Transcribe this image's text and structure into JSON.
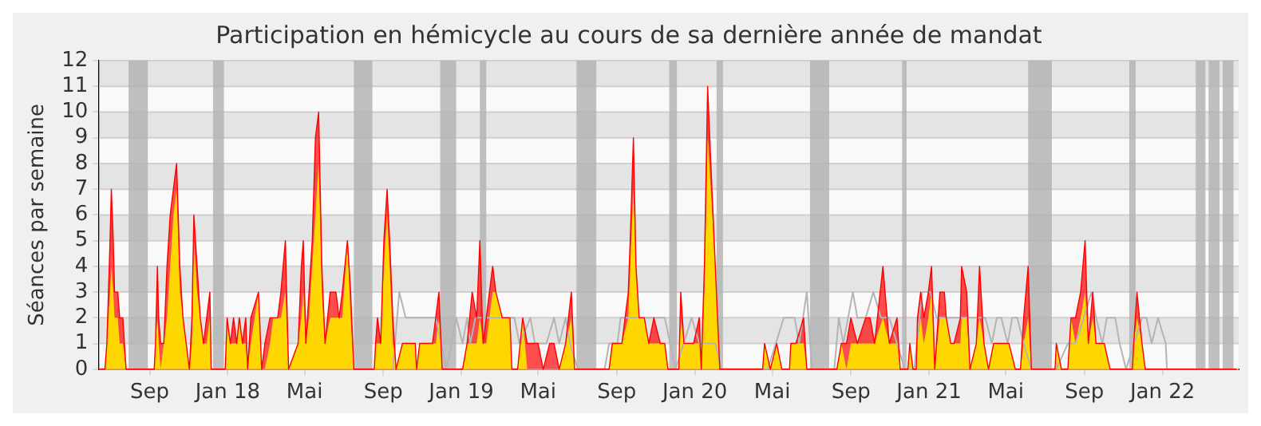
{
  "chart_data": {
    "type": "area",
    "title": "Participation en hémicycle au cours de sa dernière année de mandat",
    "ylabel": "Séances par semaine",
    "xlim": [
      "2017-06-14",
      "2022-04-30"
    ],
    "xticks": [
      {
        "value": "2017-09-01",
        "label": "Sep"
      },
      {
        "value": "2018-01-01",
        "label": "Jan 18"
      },
      {
        "value": "2018-05-01",
        "label": "Mai"
      },
      {
        "value": "2018-09-01",
        "label": "Sep"
      },
      {
        "value": "2019-01-01",
        "label": "Jan 19"
      },
      {
        "value": "2019-05-01",
        "label": "Mai"
      },
      {
        "value": "2019-09-01",
        "label": "Sep"
      },
      {
        "value": "2020-01-01",
        "label": "Jan 20"
      },
      {
        "value": "2020-05-01",
        "label": "Mai"
      },
      {
        "value": "2020-09-01",
        "label": "Sep"
      },
      {
        "value": "2021-01-01",
        "label": "Jan 21"
      },
      {
        "value": "2021-05-01",
        "label": "Mai"
      },
      {
        "value": "2021-09-01",
        "label": "Sep"
      },
      {
        "value": "2022-01-01",
        "label": "Jan 22"
      }
    ],
    "ylim": [
      0,
      12
    ],
    "yticks": [
      0,
      1,
      2,
      3,
      4,
      5,
      6,
      7,
      8,
      9,
      10,
      11,
      12
    ],
    "grid": "y",
    "legend": false,
    "marker": "none",
    "bands": [
      {
        "axis": "x",
        "from": "2017-07-30",
        "to": "2017-08-29",
        "color": "#b0b0b0"
      },
      {
        "axis": "x",
        "from": "2017-12-09",
        "to": "2017-12-26",
        "color": "#b0b0b0"
      },
      {
        "axis": "x",
        "from": "2018-07-17",
        "to": "2018-08-15",
        "color": "#b0b0b0"
      },
      {
        "axis": "x",
        "from": "2018-11-29",
        "to": "2018-12-24",
        "color": "#b0b0b0"
      },
      {
        "axis": "x",
        "from": "2019-01-30",
        "to": "2019-02-09",
        "color": "#b0b0b0"
      },
      {
        "axis": "x",
        "from": "2019-06-30",
        "to": "2019-07-31",
        "color": "#b0b0b0"
      },
      {
        "axis": "x",
        "from": "2019-11-22",
        "to": "2019-12-04",
        "color": "#b0b0b0"
      },
      {
        "axis": "x",
        "from": "2020-02-04",
        "to": "2020-02-14",
        "color": "#b0b0b0"
      },
      {
        "axis": "x",
        "from": "2020-06-29",
        "to": "2020-07-29",
        "color": "#b0b0b0"
      },
      {
        "axis": "x",
        "from": "2020-11-20",
        "to": "2020-11-27",
        "color": "#b0b0b0"
      },
      {
        "axis": "x",
        "from": "2021-06-05",
        "to": "2021-07-12",
        "color": "#b0b0b0"
      },
      {
        "axis": "x",
        "from": "2021-11-10",
        "to": "2021-11-20",
        "color": "#b0b0b0"
      },
      {
        "axis": "x",
        "from": "2022-02-22",
        "to": "2022-03-09",
        "color": "#b0b0b0"
      },
      {
        "axis": "x",
        "from": "2022-03-14",
        "to": "2022-03-31",
        "color": "#b0b0b0"
      },
      {
        "axis": "x",
        "from": "2022-04-05",
        "to": "2022-04-22",
        "color": "#b0b0b0"
      }
    ],
    "x": [
      "2017-06-14",
      "2017-06-23",
      "2017-06-26",
      "2017-07-01",
      "2017-07-03",
      "2017-07-06",
      "2017-07-08",
      "2017-07-13",
      "2017-07-16",
      "2017-07-21",
      "2017-07-26",
      "2017-09-08",
      "2017-09-10",
      "2017-09-13",
      "2017-09-15",
      "2017-09-18",
      "2017-09-23",
      "2017-09-28",
      "2017-10-03",
      "2017-10-08",
      "2017-10-13",
      "2017-10-18",
      "2017-10-23",
      "2017-10-28",
      "2017-11-02",
      "2017-11-06",
      "2017-11-09",
      "2017-11-14",
      "2017-11-19",
      "2017-11-24",
      "2017-11-29",
      "2017-12-04",
      "2017-12-06",
      "2017-12-28",
      "2017-12-31",
      "2018-01-05",
      "2018-01-10",
      "2018-01-15",
      "2018-01-19",
      "2018-01-24",
      "2018-01-29",
      "2018-02-01",
      "2018-02-06",
      "2018-02-18",
      "2018-02-23",
      "2018-02-28",
      "2018-03-08",
      "2018-03-13",
      "2018-03-20",
      "2018-03-25",
      "2018-04-01",
      "2018-04-06",
      "2018-04-21",
      "2018-04-26",
      "2018-04-29",
      "2018-05-03",
      "2018-05-08",
      "2018-05-13",
      "2018-05-18",
      "2018-05-23",
      "2018-05-28",
      "2018-06-02",
      "2018-06-10",
      "2018-06-19",
      "2018-06-24",
      "2018-06-29",
      "2018-07-07",
      "2018-07-12",
      "2018-07-17",
      "2018-08-18",
      "2018-08-20",
      "2018-08-23",
      "2018-08-28",
      "2018-09-02",
      "2018-09-07",
      "2018-09-11",
      "2018-09-16",
      "2018-09-21",
      "2018-10-01",
      "2018-10-21",
      "2018-10-23",
      "2018-10-28",
      "2018-11-17",
      "2018-11-22",
      "2018-11-27",
      "2018-12-02",
      "2019-01-03",
      "2019-01-10",
      "2019-01-18",
      "2019-01-25",
      "2019-01-30",
      "2019-02-04",
      "2019-02-09",
      "2019-02-14",
      "2019-02-19",
      "2019-02-24",
      "2019-03-06",
      "2019-03-18",
      "2019-03-21",
      "2019-03-30",
      "2019-04-07",
      "2019-04-14",
      "2019-04-24",
      "2019-05-01",
      "2019-05-09",
      "2019-05-19",
      "2019-05-26",
      "2019-06-03",
      "2019-06-13",
      "2019-06-22",
      "2019-06-27",
      "2019-08-20",
      "2019-08-25",
      "2019-09-09",
      "2019-09-19",
      "2019-09-22",
      "2019-09-27",
      "2019-10-01",
      "2019-10-06",
      "2019-10-14",
      "2019-10-21",
      "2019-10-29",
      "2019-11-08",
      "2019-11-15",
      "2019-11-20",
      "2019-12-07",
      "2019-12-10",
      "2019-12-15",
      "2019-12-20",
      "2019-12-30",
      "2020-01-08",
      "2020-01-11",
      "2020-01-16",
      "2020-01-21",
      "2020-01-26",
      "2020-02-02",
      "2020-02-09",
      "2020-04-16",
      "2020-04-19",
      "2020-04-28",
      "2020-05-08",
      "2020-05-16",
      "2020-05-28",
      "2020-05-30",
      "2020-06-07",
      "2020-06-19",
      "2020-06-24",
      "2020-08-10",
      "2020-08-17",
      "2020-08-25",
      "2020-09-01",
      "2020-09-11",
      "2020-09-24",
      "2020-10-01",
      "2020-10-08",
      "2020-10-21",
      "2020-10-31",
      "2020-11-12",
      "2020-11-17",
      "2020-11-29",
      "2020-12-02",
      "2020-12-07",
      "2020-12-12",
      "2020-12-14",
      "2020-12-19",
      "2020-12-24",
      "2020-12-31",
      "2021-01-05",
      "2021-01-10",
      "2021-01-18",
      "2021-01-25",
      "2021-01-28",
      "2021-02-04",
      "2021-02-09",
      "2021-02-19",
      "2021-02-21",
      "2021-03-01",
      "2021-03-06",
      "2021-03-16",
      "2021-03-21",
      "2021-03-28",
      "2021-04-04",
      "2021-04-12",
      "2021-05-06",
      "2021-05-16",
      "2021-05-24",
      "2021-05-29",
      "2021-06-05",
      "2021-06-10",
      "2021-07-17",
      "2021-07-19",
      "2021-07-27",
      "2021-08-06",
      "2021-08-11",
      "2021-08-18",
      "2021-08-26",
      "2021-09-02",
      "2021-09-07",
      "2021-09-14",
      "2021-09-19",
      "2021-10-02",
      "2021-10-11",
      "2021-11-15",
      "2021-11-17",
      "2021-11-22",
      "2021-11-30",
      "2021-12-05",
      "2022-04-27"
    ],
    "series": [
      {
        "color": "#ff0000",
        "values": [
          0,
          0,
          1,
          5,
          7,
          5,
          3,
          3,
          2,
          2,
          0,
          0,
          1,
          4,
          2,
          1,
          1,
          4,
          6,
          7,
          8,
          4,
          2,
          1,
          0,
          2,
          6,
          4,
          2,
          1,
          2,
          3,
          0,
          0,
          2,
          1,
          2,
          1,
          2,
          1,
          2,
          0,
          2,
          3,
          0,
          1,
          2,
          2,
          2,
          3,
          5,
          0,
          1,
          4,
          5,
          1,
          3,
          5,
          9,
          10,
          4,
          1,
          3,
          3,
          2,
          3,
          5,
          3,
          0,
          0,
          1,
          2,
          1,
          5,
          7,
          5,
          2,
          0,
          1,
          1,
          0,
          1,
          1,
          2,
          3,
          0,
          0,
          1,
          3,
          2,
          5,
          1,
          2,
          3,
          4,
          3,
          2,
          2,
          0,
          0,
          2,
          1,
          1,
          1,
          0,
          1,
          1,
          0,
          1,
          3,
          0,
          0,
          1,
          1,
          3,
          5,
          9,
          4,
          2,
          2,
          1,
          2,
          1,
          1,
          0,
          0,
          3,
          1,
          1,
          1,
          2,
          0,
          4,
          11,
          8,
          4,
          0,
          0,
          1,
          0,
          1,
          0,
          0,
          1,
          1,
          2,
          0,
          0,
          1,
          1,
          2,
          1,
          2,
          2,
          1,
          4,
          1,
          2,
          0,
          0,
          1,
          0,
          0,
          2,
          3,
          2,
          3,
          4,
          0,
          3,
          3,
          2,
          1,
          1,
          2,
          4,
          3,
          0,
          1,
          4,
          1,
          0,
          1,
          1,
          0,
          0,
          2,
          4,
          0,
          0,
          1,
          0,
          0,
          2,
          2,
          3,
          5,
          1,
          3,
          1,
          1,
          0,
          0,
          1,
          3,
          1,
          0,
          0
        ]
      },
      {
        "color": "#ffd700",
        "values": [
          0,
          0,
          1,
          3,
          4,
          3,
          2,
          2,
          1,
          1,
          0,
          0,
          1,
          2,
          1,
          0,
          1,
          2,
          4,
          6,
          7,
          3,
          2,
          1,
          0,
          1,
          5,
          3,
          2,
          1,
          1,
          2,
          0,
          0,
          2,
          1,
          1,
          1,
          2,
          1,
          1,
          0,
          1,
          3,
          0,
          0,
          1,
          2,
          2,
          2,
          3,
          0,
          1,
          2,
          3,
          1,
          2,
          4,
          6,
          8,
          3,
          1,
          2,
          2,
          2,
          2,
          5,
          2,
          0,
          0,
          1,
          1,
          1,
          4,
          6,
          4,
          1,
          0,
          1,
          1,
          0,
          1,
          1,
          1,
          2,
          0,
          0,
          1,
          1,
          1,
          2,
          1,
          1,
          2,
          3,
          3,
          2,
          2,
          0,
          0,
          2,
          0,
          0,
          0,
          0,
          0,
          0,
          0,
          1,
          2,
          0,
          0,
          1,
          1,
          2,
          4,
          7,
          4,
          2,
          2,
          1,
          1,
          1,
          1,
          0,
          0,
          2,
          1,
          1,
          1,
          1,
          0,
          3,
          9,
          7,
          4,
          0,
          0,
          1,
          0,
          1,
          0,
          0,
          1,
          1,
          1,
          0,
          0,
          1,
          0,
          1,
          1,
          1,
          1,
          1,
          2,
          1,
          1,
          0,
          0,
          1,
          0,
          0,
          1,
          2,
          1,
          2,
          3,
          0,
          2,
          2,
          2,
          1,
          1,
          1,
          2,
          2,
          0,
          1,
          2,
          1,
          0,
          1,
          1,
          0,
          0,
          1,
          2,
          0,
          0,
          1,
          0,
          0,
          2,
          1,
          2,
          3,
          1,
          2,
          1,
          1,
          0,
          0,
          1,
          2,
          1,
          0,
          0
        ]
      },
      {
        "type": "line",
        "color": "#b4b4b4",
        "x": [
          "2018-09-16",
          "2018-09-26",
          "2018-10-06",
          "2018-11-22",
          "2018-12-09",
          "2018-12-24",
          "2019-01-03",
          "2019-01-10",
          "2019-01-15",
          "2019-01-23",
          "2019-02-04",
          "2019-03-13",
          "2019-03-25",
          "2019-04-02",
          "2019-04-19",
          "2019-04-26",
          "2019-05-14",
          "2019-05-26",
          "2019-06-03",
          "2019-06-13",
          "2019-06-20",
          "2019-07-02",
          "2019-08-13",
          "2019-08-20",
          "2019-09-02",
          "2019-09-07",
          "2019-09-14",
          "2019-11-03",
          "2019-11-15",
          "2019-12-02",
          "2019-12-27",
          "2020-01-08",
          "2020-02-02",
          "2020-02-12",
          "2020-04-24",
          "2020-05-19",
          "2020-06-05",
          "2020-06-12",
          "2020-06-24",
          "2020-07-02",
          "2020-08-06",
          "2020-08-13",
          "2020-08-20",
          "2020-09-04",
          "2020-09-11",
          "2020-09-24",
          "2020-10-06",
          "2020-10-18",
          "2020-10-31",
          "2020-11-12",
          "2020-11-24",
          "2020-12-09",
          "2020-12-21",
          "2021-01-03",
          "2021-01-13",
          "2021-03-18",
          "2021-03-30",
          "2021-04-09",
          "2021-04-17",
          "2021-04-24",
          "2021-05-04",
          "2021-05-11",
          "2021-05-19",
          "2021-05-29",
          "2021-06-10",
          "2021-07-19",
          "2021-08-06",
          "2021-08-18",
          "2021-08-31",
          "2021-09-12",
          "2021-09-19",
          "2021-09-29",
          "2021-10-06",
          "2021-10-19",
          "2021-10-26",
          "2021-11-05",
          "2021-11-30",
          "2021-12-07",
          "2021-12-15",
          "2021-12-25",
          "2022-01-06",
          "2022-01-08"
        ],
        "values": [
          0,
          3,
          2,
          2,
          0,
          2,
          1,
          2,
          1,
          2,
          2,
          2,
          2,
          1,
          2,
          1,
          1,
          2,
          1,
          2,
          1,
          0,
          0,
          1,
          1,
          2,
          2,
          2,
          2,
          0,
          2,
          1,
          1,
          0,
          0,
          2,
          2,
          1,
          3,
          0,
          0,
          2,
          1,
          3,
          2,
          2,
          3,
          2,
          2,
          1,
          0,
          0,
          3,
          3,
          2,
          2,
          2,
          1,
          2,
          2,
          1,
          2,
          2,
          1,
          0,
          0,
          1,
          1,
          2,
          3,
          2,
          1,
          2,
          2,
          1,
          0,
          2,
          2,
          1,
          2,
          1,
          0
        ]
      }
    ]
  }
}
